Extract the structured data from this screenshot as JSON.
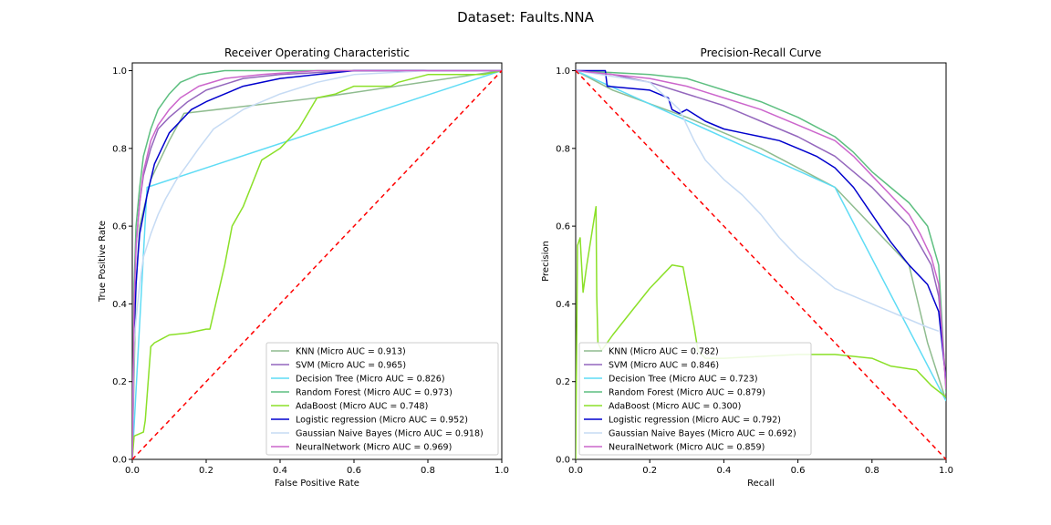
{
  "figure": {
    "suptitle": "Dataset: Faults.NNA"
  },
  "chart_data": [
    {
      "type": "line",
      "title": "Receiver Operating Characteristic",
      "xlabel": "False Positive Rate",
      "ylabel": "True Positive Rate",
      "xlim": [
        0,
        1
      ],
      "ylim": [
        0,
        1.02
      ],
      "xticks": [
        0,
        0.2,
        0.4,
        0.6,
        0.8,
        1.0
      ],
      "yticks": [
        0,
        0.2,
        0.4,
        0.6,
        0.8,
        1.0
      ],
      "xtick_labels": [
        "0.0",
        "0.2",
        "0.4",
        "0.6",
        "0.8",
        "1.0"
      ],
      "ytick_labels": [
        "0.0",
        "0.2",
        "0.4",
        "0.6",
        "0.8",
        "1.0"
      ],
      "legend_position": "lower-right",
      "reference_line": {
        "x": [
          0,
          1
        ],
        "y": [
          0,
          1
        ],
        "color": "#ff0000",
        "style": "dashed"
      },
      "series": [
        {
          "name": "KNN (Micro AUC = 0.913)",
          "color": "#8fbc8f",
          "x": [
            0,
            0.01,
            0.02,
            0.05,
            0.1,
            0.14,
            0.5,
            1.0
          ],
          "y": [
            0,
            0.45,
            0.6,
            0.72,
            0.82,
            0.89,
            0.93,
            1.0
          ]
        },
        {
          "name": "SVM (Micro AUC = 0.965)",
          "color": "#9467bd",
          "x": [
            0,
            0.005,
            0.01,
            0.02,
            0.03,
            0.05,
            0.07,
            0.1,
            0.15,
            0.2,
            0.3,
            0.4,
            0.6,
            1.0
          ],
          "y": [
            0,
            0.42,
            0.55,
            0.66,
            0.73,
            0.8,
            0.85,
            0.88,
            0.92,
            0.95,
            0.98,
            0.99,
            1.0,
            1.0
          ]
        },
        {
          "name": "Decision Tree (Micro AUC = 0.826)",
          "color": "#5fdcf5",
          "x": [
            0,
            0.04,
            1.0
          ],
          "y": [
            0,
            0.7,
            1.0
          ]
        },
        {
          "name": "Random Forest (Micro AUC = 0.973)",
          "color": "#5dbf80",
          "x": [
            0,
            0.005,
            0.01,
            0.02,
            0.03,
            0.05,
            0.07,
            0.1,
            0.13,
            0.18,
            0.25,
            0.35,
            1.0
          ],
          "y": [
            0,
            0.45,
            0.6,
            0.7,
            0.78,
            0.85,
            0.9,
            0.94,
            0.97,
            0.99,
            1.0,
            1.0,
            1.0
          ]
        },
        {
          "name": "AdaBoost (Micro AUC = 0.748)",
          "color": "#8be028",
          "x": [
            0,
            0.005,
            0.03,
            0.035,
            0.05,
            0.06,
            0.08,
            0.1,
            0.15,
            0.2,
            0.21,
            0.25,
            0.27,
            0.3,
            0.35,
            0.4,
            0.45,
            0.5,
            0.55,
            0.6,
            0.7,
            0.72,
            0.8,
            0.95,
            1.0
          ],
          "y": [
            0,
            0.06,
            0.07,
            0.1,
            0.29,
            0.3,
            0.31,
            0.32,
            0.325,
            0.335,
            0.335,
            0.5,
            0.6,
            0.65,
            0.77,
            0.8,
            0.85,
            0.93,
            0.94,
            0.96,
            0.96,
            0.97,
            0.99,
            0.99,
            1.0
          ]
        },
        {
          "name": "Logistic regression (Micro AUC = 0.952)",
          "color": "#0000cd",
          "x": [
            0,
            0.005,
            0.01,
            0.015,
            0.02,
            0.03,
            0.04,
            0.05,
            0.06,
            0.08,
            0.1,
            0.13,
            0.16,
            0.2,
            0.25,
            0.3,
            0.4,
            0.5,
            0.6,
            0.7,
            1.0
          ],
          "y": [
            0,
            0.33,
            0.45,
            0.52,
            0.58,
            0.63,
            0.68,
            0.72,
            0.76,
            0.8,
            0.84,
            0.87,
            0.9,
            0.92,
            0.94,
            0.96,
            0.98,
            0.99,
            1.0,
            1.0,
            1.0
          ]
        },
        {
          "name": "Gaussian Naive Bayes (Micro AUC = 0.918)",
          "color": "#c6dbf4",
          "x": [
            0,
            0.005,
            0.01,
            0.02,
            0.03,
            0.05,
            0.07,
            0.09,
            0.12,
            0.15,
            0.18,
            0.22,
            0.3,
            0.4,
            0.5,
            0.6,
            0.8,
            1.0
          ],
          "y": [
            0,
            0.3,
            0.36,
            0.45,
            0.52,
            0.58,
            0.63,
            0.67,
            0.72,
            0.76,
            0.8,
            0.85,
            0.9,
            0.94,
            0.97,
            0.99,
            1.0,
            1.0
          ]
        },
        {
          "name": "NeuralNetwork (Micro AUC = 0.969)",
          "color": "#cc66cc",
          "x": [
            0,
            0.005,
            0.01,
            0.02,
            0.03,
            0.05,
            0.07,
            0.1,
            0.13,
            0.18,
            0.25,
            0.35,
            0.5,
            1.0
          ],
          "y": [
            0,
            0.4,
            0.55,
            0.66,
            0.74,
            0.82,
            0.86,
            0.9,
            0.93,
            0.96,
            0.98,
            0.99,
            1.0,
            1.0
          ]
        }
      ]
    },
    {
      "type": "line",
      "title": "Precision-Recall Curve",
      "xlabel": "Recall",
      "ylabel": "Precision",
      "xlim": [
        0,
        1
      ],
      "ylim": [
        0,
        1.02
      ],
      "xticks": [
        0,
        0.2,
        0.4,
        0.6,
        0.8,
        1.0
      ],
      "yticks": [
        0,
        0.2,
        0.4,
        0.6,
        0.8,
        1.0
      ],
      "xtick_labels": [
        "0.0",
        "0.2",
        "0.4",
        "0.6",
        "0.8",
        "1.0"
      ],
      "ytick_labels": [
        "0.0",
        "0.2",
        "0.4",
        "0.6",
        "0.8",
        "1.0"
      ],
      "legend_position": "lower-left",
      "reference_line": {
        "x": [
          0,
          1
        ],
        "y": [
          1,
          0
        ],
        "color": "#ff0000",
        "style": "dashed"
      },
      "series": [
        {
          "name": "KNN (Micro AUC = 0.782)",
          "color": "#8fbc8f",
          "x": [
            0,
            0.1,
            0.3,
            0.5,
            0.7,
            0.82,
            0.9,
            0.95,
            1.0
          ],
          "y": [
            1.0,
            0.95,
            0.88,
            0.8,
            0.7,
            0.58,
            0.5,
            0.3,
            0.15
          ]
        },
        {
          "name": "SVM (Micro AUC = 0.846)",
          "color": "#9467bd",
          "x": [
            0,
            0.1,
            0.2,
            0.3,
            0.4,
            0.5,
            0.6,
            0.7,
            0.75,
            0.8,
            0.85,
            0.9,
            0.93,
            0.96,
            0.98,
            1.0
          ],
          "y": [
            1.0,
            0.99,
            0.97,
            0.94,
            0.91,
            0.87,
            0.83,
            0.78,
            0.74,
            0.7,
            0.65,
            0.6,
            0.55,
            0.5,
            0.42,
            0.2
          ]
        },
        {
          "name": "Decision Tree (Micro AUC = 0.723)",
          "color": "#5fdcf5",
          "x": [
            0,
            0.7,
            1.0
          ],
          "y": [
            1.0,
            0.7,
            0.15
          ]
        },
        {
          "name": "Random Forest (Micro AUC = 0.879)",
          "color": "#5dbf80",
          "x": [
            0,
            0.2,
            0.3,
            0.4,
            0.5,
            0.6,
            0.7,
            0.75,
            0.8,
            0.85,
            0.9,
            0.95,
            0.98,
            1.0
          ],
          "y": [
            1.0,
            0.99,
            0.98,
            0.95,
            0.92,
            0.88,
            0.83,
            0.79,
            0.74,
            0.7,
            0.66,
            0.6,
            0.5,
            0.17
          ]
        },
        {
          "name": "AdaBoost (Micro AUC = 0.300)",
          "color": "#8be028",
          "x": [
            0,
            0.005,
            0.012,
            0.02,
            0.03,
            0.055,
            0.057,
            0.06,
            0.07,
            0.1,
            0.15,
            0.2,
            0.26,
            0.29,
            0.32,
            0.33,
            0.35,
            0.4,
            0.5,
            0.6,
            0.7,
            0.8,
            0.85,
            0.92,
            0.96,
            1.0
          ],
          "y": [
            0,
            0.55,
            0.57,
            0.43,
            0.5,
            0.65,
            0.42,
            0.3,
            0.28,
            0.32,
            0.38,
            0.44,
            0.5,
            0.495,
            0.34,
            0.28,
            0.26,
            0.26,
            0.265,
            0.27,
            0.27,
            0.26,
            0.24,
            0.23,
            0.19,
            0.16
          ]
        },
        {
          "name": "Logistic regression (Micro AUC = 0.792)",
          "color": "#0000cd",
          "x": [
            0,
            0.08,
            0.085,
            0.2,
            0.25,
            0.26,
            0.28,
            0.3,
            0.35,
            0.4,
            0.45,
            0.5,
            0.55,
            0.6,
            0.65,
            0.7,
            0.75,
            0.8,
            0.85,
            0.9,
            0.95,
            0.98,
            1.0
          ],
          "y": [
            1.0,
            1.0,
            0.96,
            0.95,
            0.93,
            0.9,
            0.89,
            0.9,
            0.87,
            0.85,
            0.84,
            0.83,
            0.82,
            0.8,
            0.78,
            0.75,
            0.7,
            0.63,
            0.56,
            0.5,
            0.45,
            0.38,
            0.2
          ]
        },
        {
          "name": "Gaussian Naive Bayes (Micro AUC = 0.692)",
          "color": "#c6dbf4",
          "x": [
            0,
            0.2,
            0.28,
            0.32,
            0.35,
            0.4,
            0.45,
            0.5,
            0.55,
            0.6,
            0.65,
            0.7,
            0.75,
            0.8,
            0.85,
            0.9,
            0.95,
            0.98
          ],
          "y": [
            1.0,
            0.97,
            0.9,
            0.82,
            0.77,
            0.72,
            0.68,
            0.63,
            0.57,
            0.52,
            0.48,
            0.44,
            0.42,
            0.4,
            0.38,
            0.36,
            0.34,
            0.33
          ]
        },
        {
          "name": "NeuralNetwork (Micro AUC = 0.859)",
          "color": "#cc66cc",
          "x": [
            0,
            0.2,
            0.3,
            0.4,
            0.5,
            0.6,
            0.7,
            0.75,
            0.8,
            0.85,
            0.9,
            0.93,
            0.96,
            0.98,
            1.0
          ],
          "y": [
            1.0,
            0.98,
            0.96,
            0.93,
            0.9,
            0.86,
            0.82,
            0.78,
            0.73,
            0.68,
            0.63,
            0.58,
            0.52,
            0.45,
            0.18
          ]
        }
      ]
    }
  ]
}
